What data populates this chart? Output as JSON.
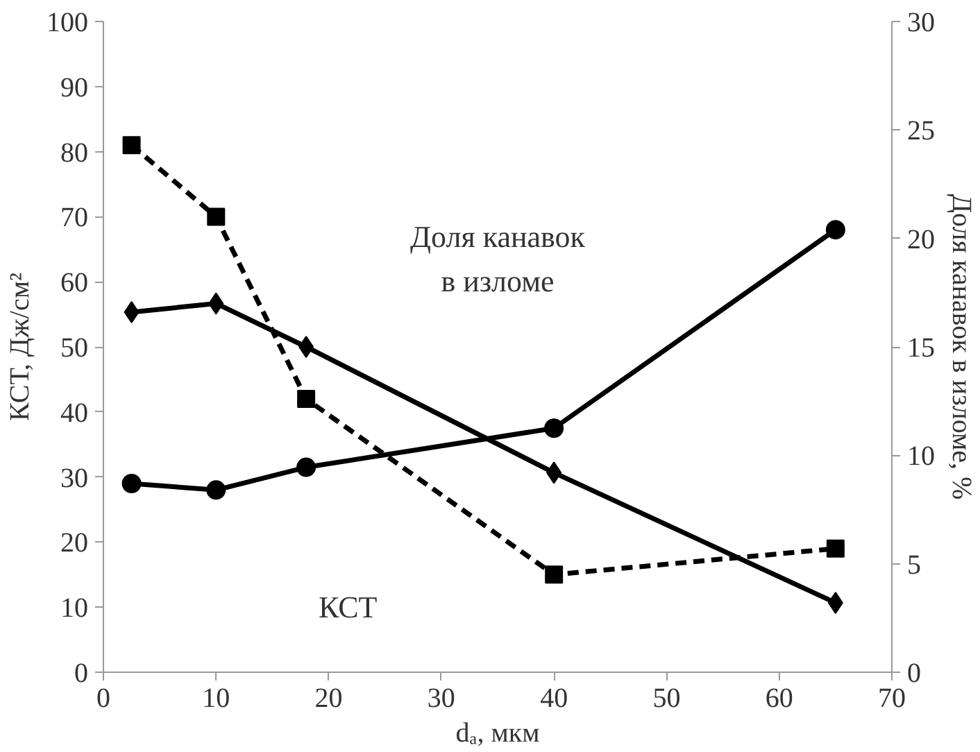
{
  "chart_data": {
    "type": "line",
    "xlabel": "dₐ, мкм",
    "ylabel": "КСТ, Дж/см²",
    "y2label": "Доля канавок в изломе, %",
    "x": [
      2.5,
      10,
      18,
      40,
      65
    ],
    "series": [
      {
        "color": "#000000",
        "values": [
          29,
          28,
          31.5,
          37.5,
          68
        ],
        "line_style": "solid"
      },
      {
        "color": "#000000",
        "values": [
          81,
          70,
          42,
          15,
          19
        ],
        "marker": "square",
        "line_style": "dashed"
      },
      {
        "color": "#000000",
        "values": [
          16.6,
          17,
          15,
          9.2,
          3.2
        ],
        "marker": "diamond",
        "line_style": "solid",
        "axis": "y2"
      }
    ],
    "xlim": [
      0,
      70
    ],
    "xticks": [
      0,
      10,
      20,
      30,
      40,
      50,
      60,
      70
    ],
    "ylim": [
      0,
      100
    ],
    "yticks": [
      0,
      10,
      20,
      30,
      40,
      50,
      60,
      70,
      80,
      90,
      100
    ],
    "y2lim": [
      0,
      30
    ],
    "y2ticks": [
      0,
      5,
      10,
      15,
      20,
      25,
      30
    ],
    "annotations": [
      "Доля канавок\nв изломе",
      "КСТ"
    ],
    "marker": "circle"
  }
}
